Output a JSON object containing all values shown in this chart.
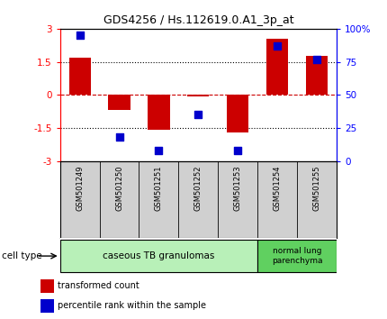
{
  "title": "GDS4256 / Hs.112619.0.A1_3p_at",
  "samples": [
    "GSM501249",
    "GSM501250",
    "GSM501251",
    "GSM501252",
    "GSM501253",
    "GSM501254",
    "GSM501255"
  ],
  "transformed_count": [
    1.7,
    -0.7,
    -1.6,
    -0.05,
    -1.7,
    2.55,
    1.75
  ],
  "percentile_rank": [
    95,
    18,
    8,
    35,
    8,
    87,
    77
  ],
  "ylim": [
    -3,
    3
  ],
  "y2lim": [
    0,
    100
  ],
  "yticks": [
    -3,
    -1.5,
    0,
    1.5,
    3
  ],
  "y2ticks": [
    0,
    25,
    50,
    75,
    100
  ],
  "ytick_labels": [
    "-3",
    "-1.5",
    "0",
    "1.5",
    "3"
  ],
  "y2tick_labels": [
    "0",
    "25",
    "50",
    "75",
    "100%"
  ],
  "bar_color": "#cc0000",
  "dot_color": "#0000cc",
  "hline_color": "#cc0000",
  "grid_color": "#000000",
  "bg_color": "#ffffff",
  "group1_samples": [
    0,
    1,
    2,
    3,
    4
  ],
  "group2_samples": [
    5,
    6
  ],
  "group1_label": "caseous TB granulomas",
  "group2_label": "normal lung\nparenchyma",
  "group1_color": "#b8f0b8",
  "group2_color": "#60d060",
  "cell_type_label": "cell type",
  "legend_bar_label": "transformed count",
  "legend_dot_label": "percentile rank within the sample",
  "bar_width": 0.55,
  "dot_size": 35,
  "label_area_color": "#d0d0d0"
}
